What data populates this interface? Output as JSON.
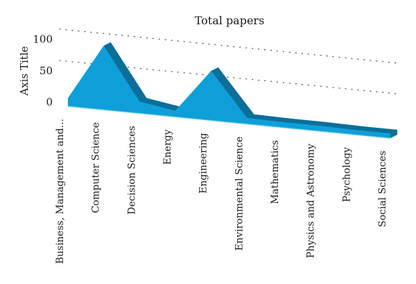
{
  "chart_data": {
    "type": "area",
    "title": "Total papers",
    "ylabel": "Axis Title",
    "xlabel": "",
    "ylim": [
      0,
      100
    ],
    "yticks": [
      0,
      50,
      100
    ],
    "grid": true,
    "legend": "none",
    "style": "3d",
    "color": "#0e9fd8",
    "side_color": "#0b6f99",
    "categories": [
      "Business, Management and...",
      "Computer Science",
      "Decision Sciences",
      "Energy",
      "Engineering",
      "Environmental Science",
      "Mathematics",
      "Physics and Astronomy",
      "Psychology",
      "Social Sciences"
    ],
    "values": [
      6,
      95,
      12,
      3,
      72,
      3,
      2,
      2,
      1,
      1
    ]
  }
}
